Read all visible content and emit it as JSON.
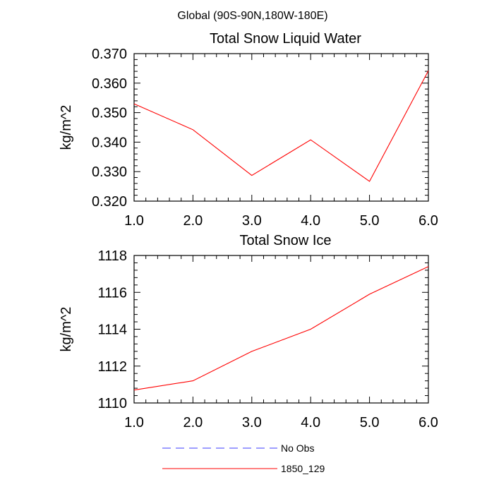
{
  "suptitle": "Global (90S-90N,180W-180E)",
  "colors": {
    "model": "#ff0000",
    "obs": "#3b3bff",
    "axis": "#000000"
  },
  "legend": {
    "placement": "bottom-center",
    "items": [
      {
        "label": "No Obs",
        "style": "dashed",
        "color": "#3b3bff"
      },
      {
        "label": "1850_129",
        "style": "solid",
        "color": "#ff0000"
      }
    ]
  },
  "chart_data": [
    {
      "type": "line",
      "title": "Total Snow Liquid Water",
      "xlabel": "",
      "ylabel": "kg/m^2",
      "xlim": [
        1.0,
        6.0
      ],
      "ylim": [
        0.32,
        0.37
      ],
      "xticks": [
        "1.0",
        "2.0",
        "3.0",
        "4.0",
        "5.0",
        "6.0"
      ],
      "yticks": [
        "0.320",
        "0.330",
        "0.340",
        "0.350",
        "0.360",
        "0.370"
      ],
      "grid": false,
      "series": [
        {
          "name": "1850_129",
          "x": [
            1.0,
            2.0,
            3.0,
            4.0,
            5.0,
            6.0
          ],
          "values": [
            0.353,
            0.3442,
            0.3287,
            0.3408,
            0.3267,
            0.3642
          ]
        }
      ]
    },
    {
      "type": "line",
      "title": "Total Snow Ice",
      "xlabel": "",
      "ylabel": "kg/m^2",
      "xlim": [
        1.0,
        6.0
      ],
      "ylim": [
        1110,
        1118
      ],
      "xticks": [
        "1.0",
        "2.0",
        "3.0",
        "4.0",
        "5.0",
        "6.0"
      ],
      "yticks": [
        "1110",
        "1112",
        "1114",
        "1116",
        "1118"
      ],
      "grid": false,
      "series": [
        {
          "name": "1850_129",
          "x": [
            1.0,
            2.0,
            3.0,
            4.0,
            5.0,
            6.0
          ],
          "values": [
            1110.7,
            1111.2,
            1112.8,
            1114.0,
            1115.9,
            1117.4
          ]
        }
      ]
    }
  ]
}
